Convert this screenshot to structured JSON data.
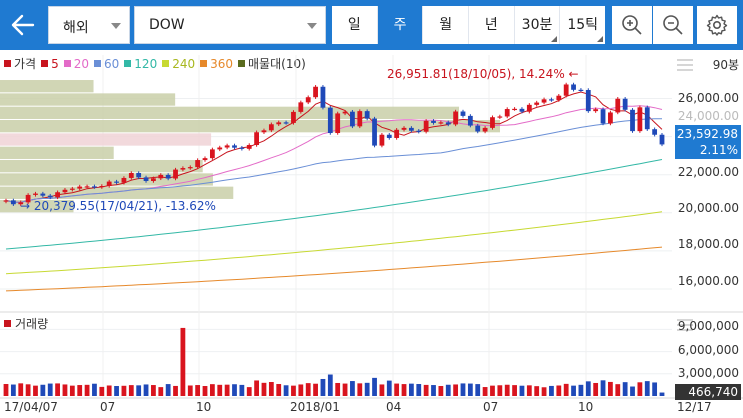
{
  "topbar": {
    "market": "해외",
    "symbol": "DOW",
    "periods": [
      "일",
      "주",
      "월",
      "년",
      "30분",
      "15틱"
    ],
    "active_period": "주"
  },
  "legend": {
    "items": [
      {
        "label": "가격",
        "color": "#c8141e"
      },
      {
        "label": "5",
        "color": "#c8141e"
      },
      {
        "label": "20",
        "color": "#e36bc8"
      },
      {
        "label": "60",
        "color": "#6a8fd6"
      },
      {
        "label": "120",
        "color": "#33b8a6"
      },
      {
        "label": "240",
        "color": "#c7d932"
      },
      {
        "label": "360",
        "color": "#e6892b"
      },
      {
        "label": "매물대(10)",
        "color": "#5a6b1e"
      }
    ]
  },
  "chart": {
    "count_label": "90봉",
    "y_ticks": [
      "26,000.00",
      "24,000.00",
      "22,000.00",
      "20,000.00",
      "18,000.00",
      "16,000.00"
    ],
    "current_price": "23,592.98",
    "current_change": "2.11%",
    "high_annotation": "26,951.81(18/10/05), 14.24%",
    "low_annotation": "20,379.55(17/04/21), -13.62%"
  },
  "volume": {
    "title": "거래량",
    "y_ticks": [
      "9,000,000",
      "6,000,000",
      "3,000,000"
    ],
    "current": "466,740"
  },
  "x_ticks": [
    "17/04/07",
    "07",
    "10",
    "2018/01",
    "04",
    "07",
    "10",
    "12/17"
  ],
  "colors": {
    "up": "#d9141e",
    "down": "#1f49b8",
    "accent": "#1f7ad1"
  },
  "chart_data": {
    "type": "candlestick",
    "x": [
      "17/04/07",
      "17/04/14",
      "17/04/21",
      "17/04/28",
      "17/05/05",
      "17/05/12",
      "17/05/19",
      "17/05/26",
      "17/06/02",
      "17/06/09",
      "17/06/16",
      "17/06/23",
      "17/06/30",
      "17/07/07",
      "17/07/14",
      "17/07/21",
      "17/07/28",
      "17/08/04",
      "17/08/11",
      "17/08/18",
      "17/08/25",
      "17/09/01",
      "17/09/08",
      "17/09/15",
      "17/09/22",
      "17/09/29",
      "17/10/06",
      "17/10/13",
      "17/10/20",
      "17/10/27",
      "17/11/03",
      "17/11/10",
      "17/11/17",
      "17/11/24",
      "17/12/01",
      "17/12/08",
      "17/12/15",
      "17/12/22",
      "17/12/29",
      "18/01/05",
      "18/01/12",
      "18/01/19",
      "18/01/26",
      "18/02/02",
      "18/02/09",
      "18/02/16",
      "18/02/23",
      "18/03/02",
      "18/03/09",
      "18/03/16",
      "18/03/23",
      "18/03/30",
      "18/04/06",
      "18/04/13",
      "18/04/20",
      "18/04/27",
      "18/05/04",
      "18/05/11",
      "18/05/18",
      "18/05/25",
      "18/06/01",
      "18/06/08",
      "18/06/15",
      "18/06/22",
      "18/06/29",
      "18/07/06",
      "18/07/13",
      "18/07/20",
      "18/07/27",
      "18/08/03",
      "18/08/10",
      "18/08/17",
      "18/08/24",
      "18/08/31",
      "18/09/07",
      "18/09/14",
      "18/09/21",
      "18/09/28",
      "18/10/05",
      "18/10/12",
      "18/10/19",
      "18/10/26",
      "18/11/02",
      "18/11/09",
      "18/11/16",
      "18/11/23",
      "18/11/30",
      "18/12/07",
      "18/12/14",
      "18/12/17"
    ],
    "close": [
      20650,
      20450,
      20550,
      20940,
      21010,
      20900,
      20810,
      21080,
      21210,
      21270,
      21380,
      21390,
      21350,
      21410,
      21640,
      21580,
      21830,
      22090,
      21860,
      21670,
      21810,
      21990,
      21800,
      22270,
      22350,
      22400,
      22770,
      22870,
      23330,
      23430,
      23540,
      23420,
      23360,
      23560,
      24230,
      24330,
      24650,
      24750,
      24720,
      25300,
      25800,
      26070,
      26620,
      25520,
      24190,
      25220,
      25310,
      24540,
      25340,
      24950,
      23530,
      24100,
      23930,
      24360,
      24460,
      24310,
      24260,
      24830,
      24720,
      24750,
      24640,
      25320,
      25090,
      24580,
      24270,
      24460,
      25020,
      25060,
      25450,
      25460,
      25310,
      25670,
      25790,
      25960,
      25920,
      26150,
      26740,
      26460,
      26450,
      25340,
      25440,
      24690,
      25270,
      25990,
      25410,
      24290,
      25540,
      24390,
      24100,
      23590
    ],
    "volume": [
      1620000,
      1550000,
      1710000,
      1580000,
      1400000,
      1520000,
      1680000,
      1700000,
      1560000,
      1400000,
      1480000,
      1510000,
      1660000,
      1230000,
      1420000,
      1350000,
      1380000,
      1470000,
      1440000,
      1560000,
      1480000,
      1200000,
      1610000,
      1360000,
      9200000,
      1420000,
      1480000,
      1350000,
      1600000,
      1510000,
      1530000,
      1590000,
      1500000,
      1200000,
      2100000,
      1780000,
      1890000,
      1620000,
      1450000,
      1400000,
      1560000,
      1740000,
      1660000,
      2300000,
      2900000,
      1760000,
      1680000,
      2020000,
      1710000,
      1780000,
      2450000,
      1560000,
      2080000,
      1680000,
      1610000,
      1670000,
      1620000,
      1500000,
      1480000,
      1350000,
      1520000,
      1560000,
      1700000,
      1680000,
      1610000,
      1210000,
      1400000,
      1450000,
      1520000,
      1470000,
      1390000,
      1440000,
      1330000,
      1180000,
      1360000,
      1420000,
      1640000,
      1400000,
      1510000,
      1980000,
      1760000,
      2120000,
      1900000,
      1600000,
      1870000,
      1280000,
      1850000,
      2010000,
      1830000,
      466740
    ],
    "y_axis_range": [
      15000,
      27500
    ],
    "volume_range": [
      0,
      10000000
    ]
  }
}
